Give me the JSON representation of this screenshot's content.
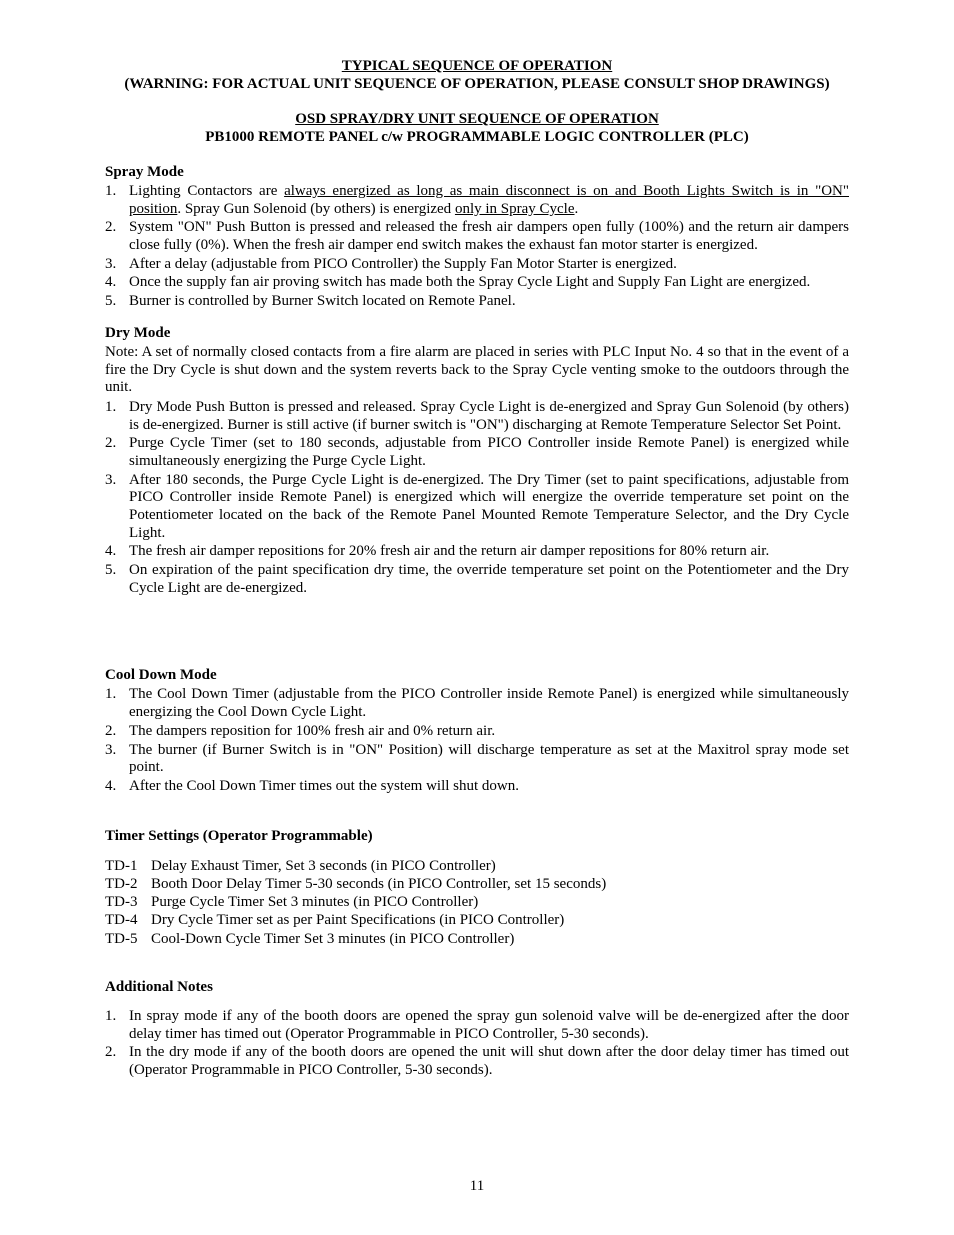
{
  "title_main": "TYPICAL SEQUENCE OF OPERATION",
  "title_warning": "(WARNING:  FOR ACTUAL UNIT SEQUENCE OF OPERATION, PLEASE CONSULT SHOP DRAWINGS)",
  "title_sub1": "OSD SPRAY/DRY UNIT SEQUENCE OF OPERATION",
  "title_sub2": "PB1000 REMOTE PANEL c/w PROGRAMMABLE LOGIC CONTROLLER (PLC)",
  "spray": {
    "head": "Spray Mode",
    "items": [
      {
        "n": "1.",
        "pre": "Lighting Contactors are ",
        "u1": "always energized as long as main disconnect is on and Booth Lights Switch is in \"ON\" position",
        "mid": ". Spray Gun Solenoid (by others) is energized ",
        "u2": "only in Spray Cycle",
        "post": "."
      },
      {
        "n": "2.",
        "text": "System \"ON\" Push Button is pressed and released the fresh air dampers open fully (100%) and the return air dampers close fully (0%).  When the fresh air damper end switch makes the exhaust fan motor starter is energized."
      },
      {
        "n": "3.",
        "text": "After a delay (adjustable from PICO Controller) the Supply Fan Motor Starter is energized."
      },
      {
        "n": "4.",
        "text": "Once the supply fan air proving switch has made both the Spray Cycle Light and Supply Fan Light are energized."
      },
      {
        "n": "5.",
        "text": "Burner is controlled by Burner Switch located on Remote Panel."
      }
    ]
  },
  "dry": {
    "head": "Dry Mode",
    "note": "Note: A set of normally closed contacts from a fire alarm are placed in series with PLC Input No. 4 so that in the event of a fire the Dry Cycle is shut down and the system reverts back to the Spray Cycle venting smoke to the outdoors through the unit.",
    "items": [
      {
        "n": "1.",
        "text": "Dry Mode Push Button is pressed and released.  Spray Cycle Light is de-energized and Spray Gun Solenoid (by others) is de-energized.  Burner is still active (if burner switch is \"ON\") discharging at Remote Temperature Selector Set Point."
      },
      {
        "n": "2.",
        "text": "Purge Cycle Timer (set to 180 seconds, adjustable from PICO Controller inside Remote Panel) is energized while simultaneously energizing the Purge Cycle Light."
      },
      {
        "n": "3.",
        "text": "After 180 seconds, the Purge Cycle Light is de-energized.  The Dry Timer (set to paint specifications, adjustable from PICO Controller inside Remote Panel) is energized which will energize the override temperature set point on the Potentiometer located on the back of the Remote Panel Mounted Remote Temperature Selector, and the Dry Cycle Light."
      },
      {
        "n": "4.",
        "text": "The fresh air damper repositions for 20% fresh air and the return air damper repositions for 80% return air."
      },
      {
        "n": "5.",
        "text": "On expiration of the paint specification dry time, the override temperature set point on the Potentiometer and the Dry Cycle Light are de-energized."
      }
    ]
  },
  "cool": {
    "head": "Cool Down Mode",
    "items": [
      {
        "n": "1.",
        "text": "The Cool Down Timer (adjustable from the PICO Controller inside Remote Panel) is energized while simultaneously energizing the Cool Down Cycle Light."
      },
      {
        "n": "2.",
        "text": "The dampers reposition for 100% fresh air and 0% return air."
      },
      {
        "n": "3.",
        "text": "The burner (if Burner Switch is in \"ON\" Position) will discharge temperature as set at the Maxitrol spray mode set point."
      },
      {
        "n": "4.",
        "text": "After the Cool Down Timer times out the system will shut down."
      }
    ]
  },
  "timers": {
    "head": "Timer Settings (Operator Programmable)",
    "rows": [
      {
        "k": "TD-1",
        "v": "Delay Exhaust Timer, Set 3 seconds (in PICO Controller)"
      },
      {
        "k": "TD-2",
        "v": "Booth Door Delay Timer  5-30 seconds (in PICO Controller, set 15 seconds)"
      },
      {
        "k": "TD-3",
        "v": "Purge Cycle Timer Set 3 minutes (in PICO Controller)"
      },
      {
        "k": "TD-4",
        "v": "Dry Cycle Timer set as per Paint Specifications (in PICO Controller)"
      },
      {
        "k": "TD-5",
        "v": "Cool-Down Cycle Timer Set 3 minutes (in PICO Controller)"
      }
    ]
  },
  "notes": {
    "head": "Additional Notes",
    "items": [
      {
        "n": "1.",
        "text": "In spray mode if any of the booth doors are opened the spray gun solenoid valve will be de-energized after the door delay timer has timed out (Operator Programmable in PICO Controller, 5-30 seconds)."
      },
      {
        "n": "2.",
        "text": "In the dry mode if any of the booth doors are opened the unit will shut down after the door delay timer has timed out (Operator Programmable in PICO Controller, 5-30 seconds)."
      }
    ]
  },
  "page_number": "11"
}
